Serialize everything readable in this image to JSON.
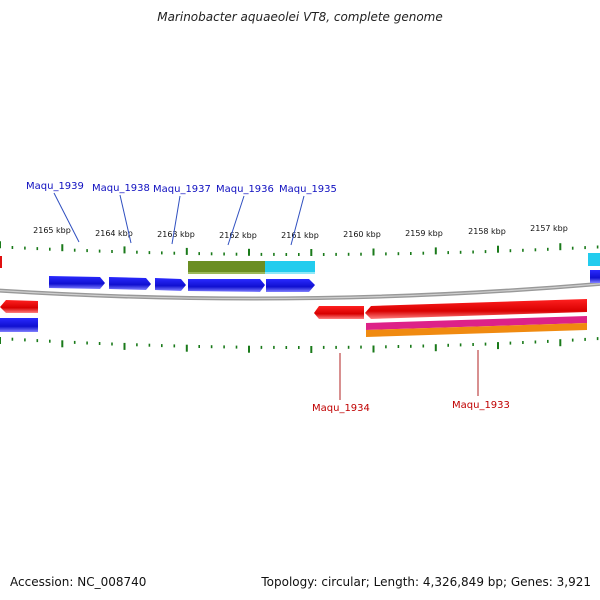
{
  "title": "Marinobacter aquaeolei VT8, complete genome",
  "footer": {
    "accession": "Accession: NC_008740",
    "stats": "Topology: circular; Length: 4,326,849 bp; Genes: 3,921"
  },
  "scale_labels": [
    "2165 kbp",
    "2164 kbp",
    "2163 kbp",
    "2162 kbp",
    "2161 kbp",
    "2160 kbp",
    "2159 kbp",
    "2158 kbp",
    "2157 kbp"
  ],
  "genes_forward": [
    "Maqu_1939",
    "Maqu_1938",
    "Maqu_1937",
    "Maqu_1936",
    "Maqu_1935"
  ],
  "genes_reverse": [
    "Maqu_1934",
    "Maqu_1933"
  ],
  "colors": {
    "forward_gene": "#1010d8",
    "reverse_gene": "#e01010",
    "tick": "#1a7a1a",
    "backbone": "#888888",
    "olive_feature": "#6b8e23",
    "cyan_feature": "#22ccee",
    "magenta_feature": "#dd2288",
    "orange_feature": "#f08a10"
  }
}
